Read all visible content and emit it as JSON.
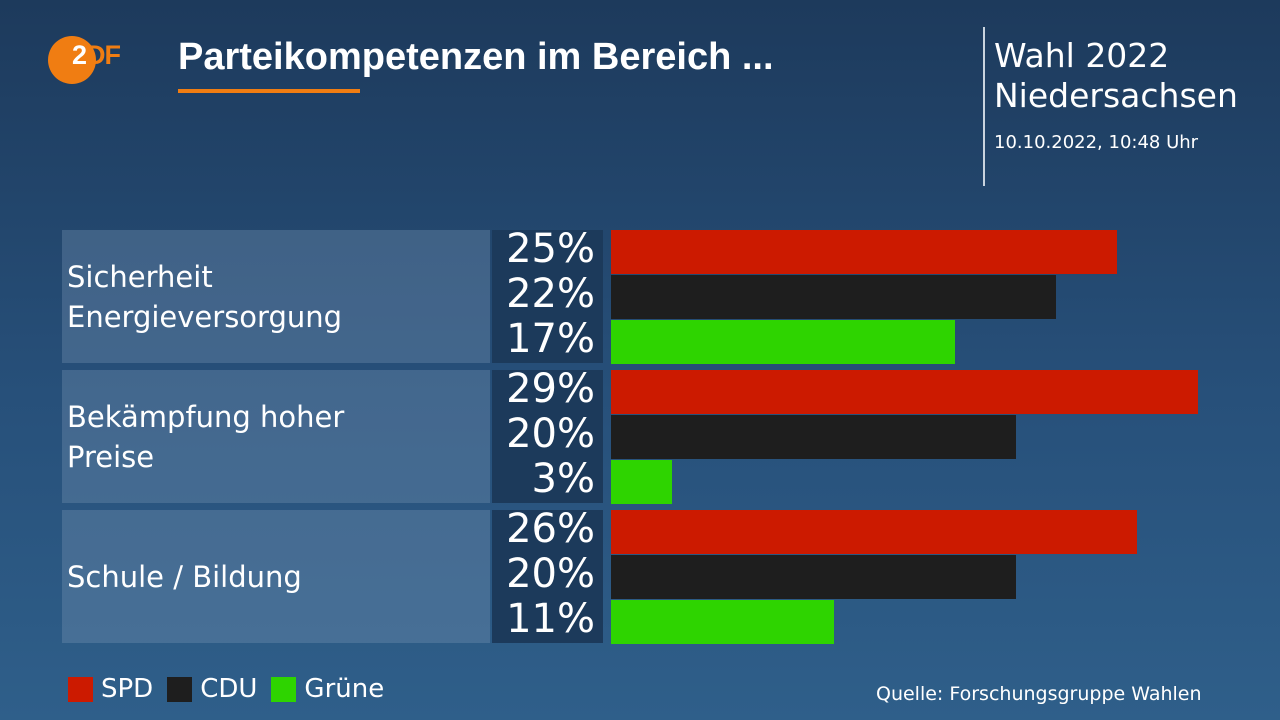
{
  "header": {
    "logo_text_a": "2",
    "logo_text_b": "DF",
    "logo": "ZDF",
    "title": "Parteikompetenzen im Bereich ...",
    "election": "Wahl 2022",
    "region": "Niedersachsen",
    "timestamp": "10.10.2022, 10:48 Uhr"
  },
  "chart_data": {
    "type": "bar",
    "orientation": "horizontal",
    "unit": "%",
    "categories": [
      "Sicherheit\nEnergieversorgung",
      "Bekämpfung hoher\nPreise",
      "Schule / Bildung"
    ],
    "series": [
      {
        "name": "SPD",
        "color": "#cc1a00",
        "values": [
          25,
          29,
          26
        ],
        "labels": [
          "25%",
          "29%",
          "26%"
        ]
      },
      {
        "name": "CDU",
        "color": "#1e1e1e",
        "values": [
          22,
          20,
          20
        ],
        "labels": [
          "22%",
          "20%",
          "20%"
        ]
      },
      {
        "name": "Grüne",
        "color": "#2ed400",
        "values": [
          17,
          3,
          11
        ],
        "labels": [
          "17%",
          "3%",
          "11%"
        ]
      }
    ]
  },
  "source": "Quelle: Forschungsgruppe Wahlen"
}
